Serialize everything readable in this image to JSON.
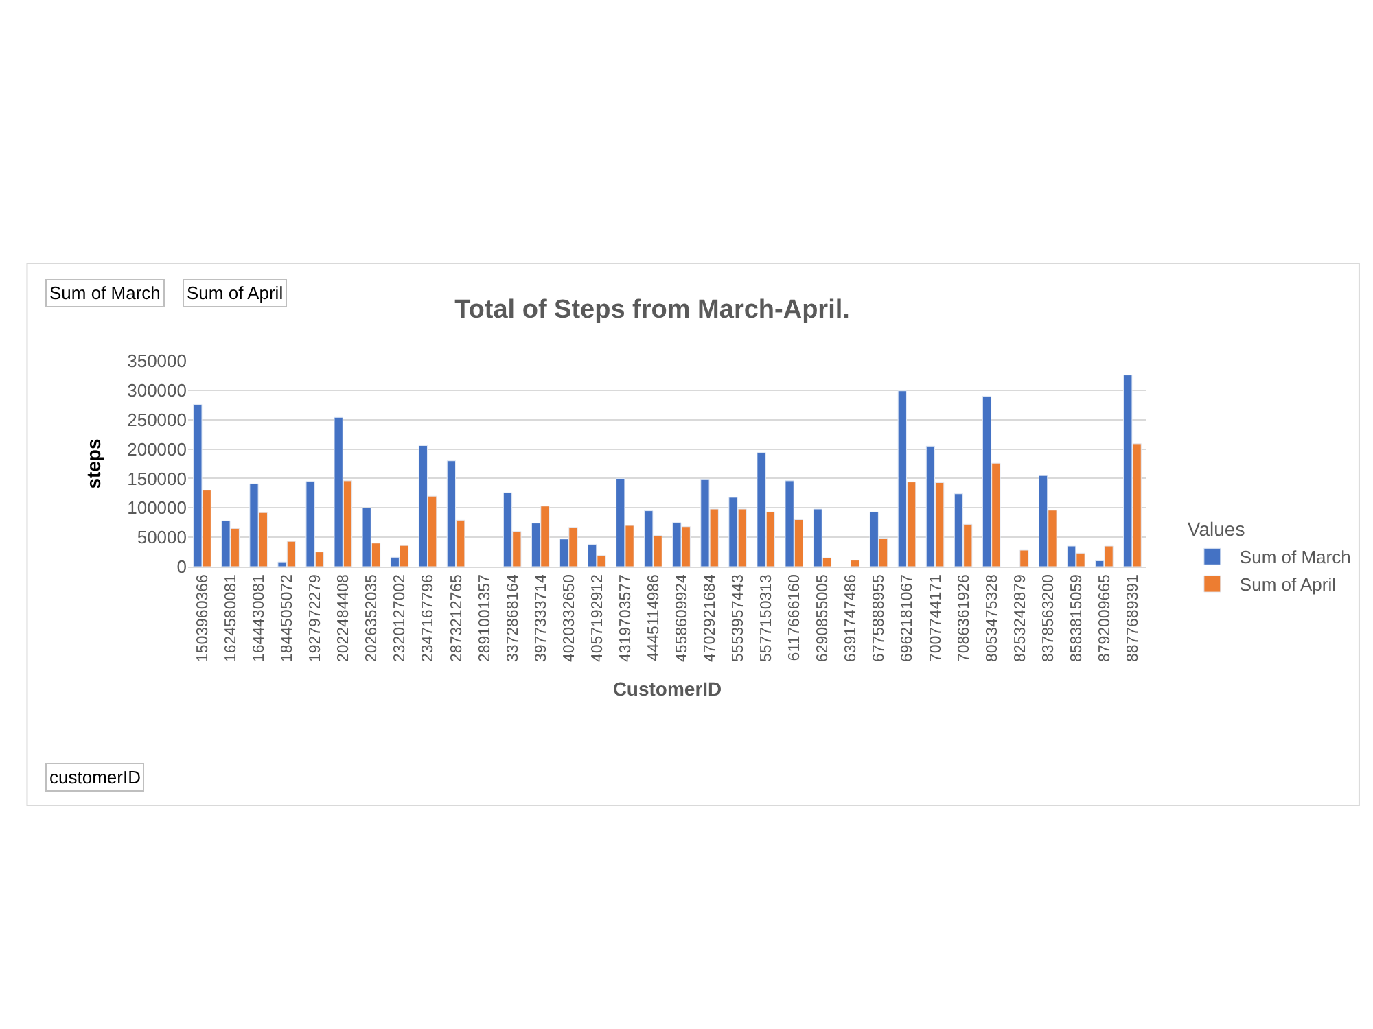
{
  "chart_data": {
    "type": "bar",
    "title": "Total of Steps from March-April.",
    "xlabel": "CustomerID",
    "ylabel": "steps",
    "legend_title": "Values",
    "annotations": [
      "Sum of March",
      "Sum of April",
      "customerID"
    ],
    "categories": [
      "1503960366",
      "1624580081",
      "1644430081",
      "1844505072",
      "1927972279",
      "2022484408",
      "2026352035",
      "2320127002",
      "2347167796",
      "2873212765",
      "2891001357",
      "3372868164",
      "3977333714",
      "4020332650",
      "4057192912",
      "4319703577",
      "4445114986",
      "4558609924",
      "4702921684",
      "5553957443",
      "5577150313",
      "6117666160",
      "6290855005",
      "6391747486",
      "6775888955",
      "6962181067",
      "7007744171",
      "7086361926",
      "8053475328",
      "8253242879",
      "8378563200",
      "8583815059",
      "8792009665",
      "8877689391"
    ],
    "series": [
      {
        "name": "Sum of March",
        "color": "#4472c4",
        "values": [
          276000,
          78000,
          141000,
          8000,
          145000,
          254000,
          100000,
          16000,
          206000,
          180000,
          null,
          126000,
          74000,
          47000,
          38000,
          150000,
          95000,
          75000,
          149000,
          118000,
          194000,
          146000,
          98000,
          null,
          93000,
          299000,
          205000,
          124000,
          290000,
          null,
          155000,
          35000,
          10000,
          326000
        ]
      },
      {
        "name": "Sum of April",
        "color": "#ed7d31",
        "values": [
          130000,
          65000,
          92000,
          43000,
          25000,
          146000,
          40000,
          36000,
          120000,
          79000,
          null,
          60000,
          103000,
          67000,
          19000,
          70000,
          53000,
          68000,
          98000,
          98000,
          93000,
          80000,
          15000,
          11000,
          48000,
          144000,
          143000,
          72000,
          176000,
          28000,
          96000,
          23000,
          35000,
          209000
        ]
      }
    ],
    "ylim": [
      0,
      350000
    ],
    "yticks": [
      0,
      50000,
      100000,
      150000,
      200000,
      250000,
      300000,
      350000
    ],
    "grid": "y",
    "legend": "right"
  }
}
